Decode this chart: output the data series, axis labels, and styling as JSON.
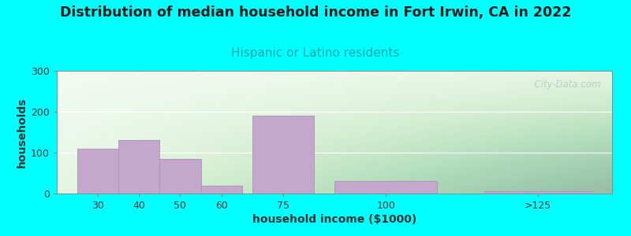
{
  "title": "Distribution of median household income in Fort Irwin, CA in 2022",
  "subtitle": "Hispanic or Latino residents",
  "xlabel": "household income ($1000)",
  "ylabel": "households",
  "bg_color": "#00FFFF",
  "bar_color": "#C4A8CC",
  "bar_edge_color": "#B090B8",
  "values": [
    110,
    130,
    85,
    20,
    190,
    30,
    5
  ],
  "bar_centers": [
    30,
    40,
    50,
    60,
    75,
    100,
    137
  ],
  "bar_widths": [
    10,
    10,
    10,
    10,
    15,
    25,
    26
  ],
  "xtick_positions": [
    30,
    40,
    50,
    60,
    75,
    100,
    137
  ],
  "xtick_labels": [
    "30",
    "40",
    "50",
    "60",
    "75",
    "100",
    ">125"
  ],
  "xlim": [
    20,
    155
  ],
  "ylim": [
    0,
    300
  ],
  "yticks": [
    0,
    100,
    200,
    300
  ],
  "title_fontsize": 12.5,
  "subtitle_fontsize": 11,
  "subtitle_color": "#00AAAA",
  "tick_label_fontsize": 9,
  "axis_label_fontsize": 10,
  "watermark": "  City-Data.com",
  "watermark_color": "#aacccc",
  "grid_color": "#ffffff",
  "plot_bg_top": "#f8fff8",
  "plot_bg_bottom": "#e8f5e8"
}
